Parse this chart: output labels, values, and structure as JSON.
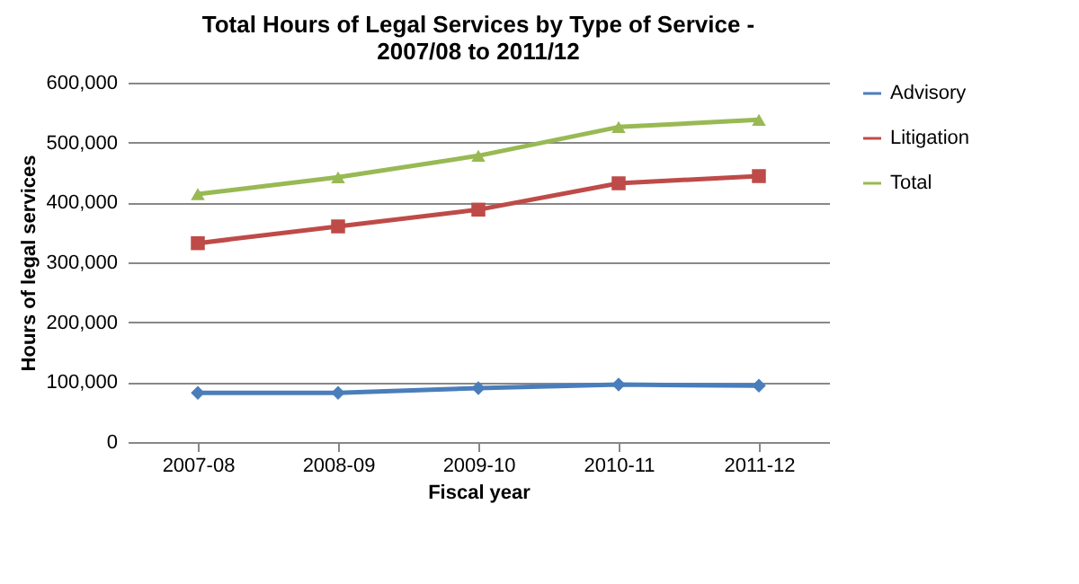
{
  "chart_data": {
    "type": "line",
    "title": "Total Hours of Legal Services by Type of Service - 2007/08 to 2011/12",
    "xlabel": "Fiscal year",
    "ylabel": "Hours of legal services",
    "categories": [
      "2007-08",
      "2008-09",
      "2009-10",
      "2010-11",
      "2011-12"
    ],
    "series": [
      {
        "name": "Advisory",
        "color": "#4a7ebb",
        "marker": "diamond",
        "values": [
          82000,
          82000,
          90000,
          96000,
          94000
        ]
      },
      {
        "name": "Litigation",
        "color": "#be4b48",
        "marker": "square",
        "values": [
          332000,
          360000,
          388000,
          432000,
          444000
        ]
      },
      {
        "name": "Total",
        "color": "#98b954",
        "marker": "triangle",
        "values": [
          414000,
          442000,
          478000,
          526000,
          538000
        ]
      }
    ],
    "ylim": [
      0,
      600000
    ],
    "yticks": [
      0,
      {
        "value": 100000,
        "label": "100,000"
      },
      {
        "value": 200000,
        "label": "200,000"
      },
      {
        "value": 300000,
        "label": "300,000"
      },
      {
        "value": 400000,
        "label": "400,000"
      },
      {
        "value": 500000,
        "label": "500,000"
      },
      {
        "value": 600000,
        "label": "600,000"
      }
    ],
    "grid": "y",
    "legend": "right"
  }
}
